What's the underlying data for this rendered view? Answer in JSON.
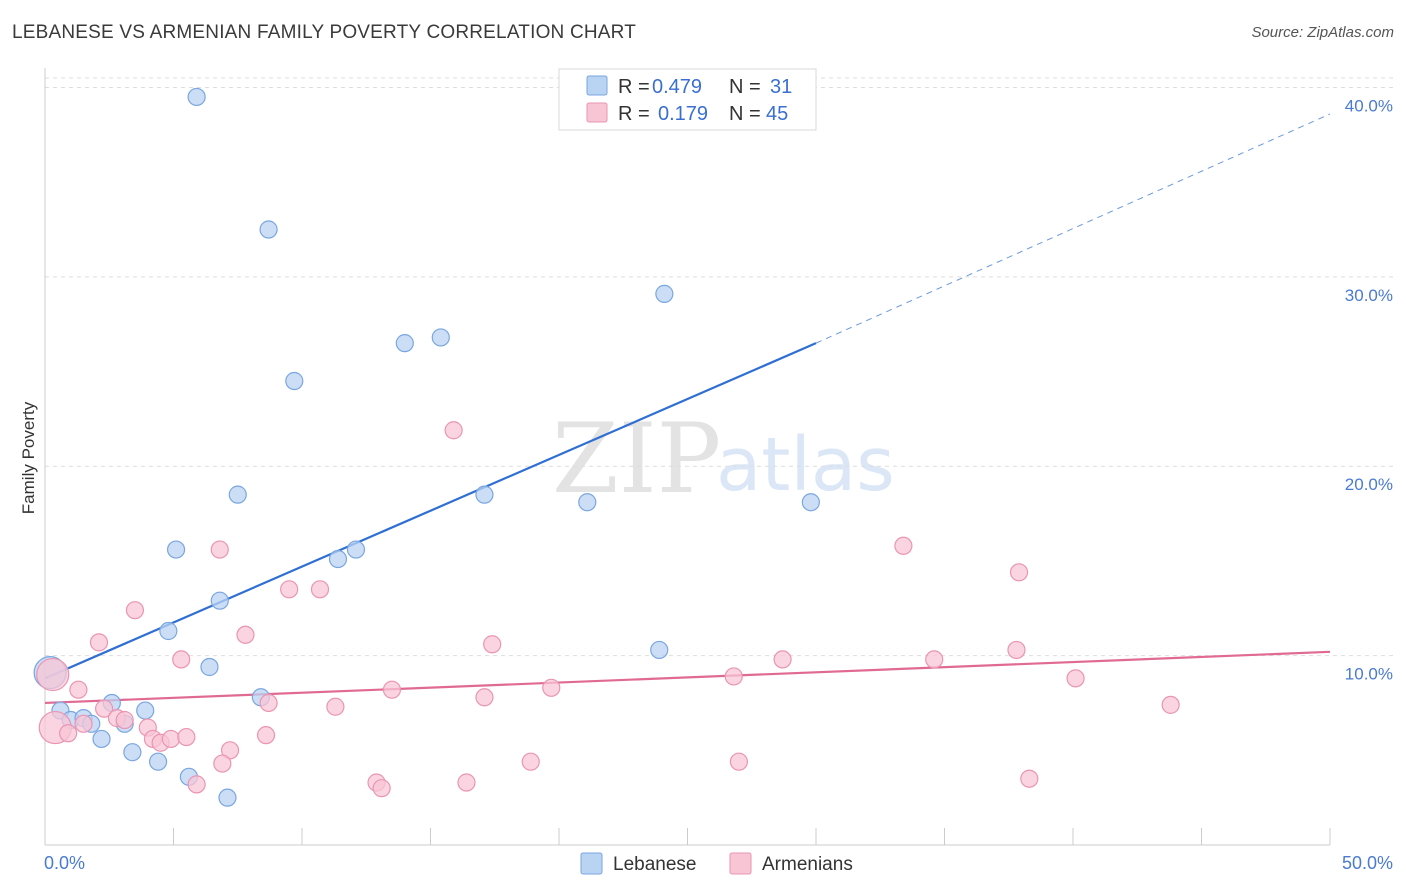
{
  "title": "LEBANESE VS ARMENIAN FAMILY POVERTY CORRELATION CHART",
  "source": "Source: ZipAtlas.com",
  "watermark": {
    "zip": "ZIP",
    "atlas": "atlas"
  },
  "colors": {
    "blue_fill": "#b9d3f3",
    "blue_stroke": "#7aa6e0",
    "blue_line": "#2f6fd3",
    "pink_fill": "#f8c5d5",
    "pink_stroke": "#ea95b2",
    "pink_line": "#e06a92",
    "grid": "#dddddd",
    "tick_text": "#4a7bd0"
  },
  "legend": {
    "rows": [
      {
        "r_label": "R =",
        "r_value": "0.479",
        "n_label": "N =",
        "n_value": "31"
      },
      {
        "r_label": "R =",
        "r_value": "0.179",
        "n_label": "N =",
        "n_value": "45"
      }
    ]
  },
  "chart_data": {
    "type": "scatter",
    "title": "LEBANESE VS ARMENIAN FAMILY POVERTY CORRELATION CHART",
    "xlabel": "",
    "ylabel": "Family Poverty",
    "xlim": [
      0,
      50
    ],
    "ylim": [
      0,
      40.5
    ],
    "x_tick_labels": [
      "0.0%",
      "50.0%"
    ],
    "y_ticks": [
      10,
      20,
      30,
      40
    ],
    "y_tick_labels": [
      "10.0%",
      "20.0%",
      "30.0%",
      "40.0%"
    ],
    "grid": true,
    "legend_position": "top-center",
    "series": [
      {
        "name": "Lebanese",
        "color": "#b9d3f3",
        "trend": {
          "x0": 0,
          "y0": 8.8,
          "x1": 30,
          "y1": 26.5,
          "dashed_to_x": 50,
          "dashed_to_y": 38.6
        },
        "points": [
          [
            5.9,
            39.5
          ],
          [
            8.7,
            32.5
          ],
          [
            9.7,
            24.5
          ],
          [
            14.0,
            26.5
          ],
          [
            15.4,
            26.8
          ],
          [
            24.1,
            29.1
          ],
          [
            7.5,
            18.5
          ],
          [
            17.1,
            18.5
          ],
          [
            21.1,
            18.1
          ],
          [
            29.8,
            18.1
          ],
          [
            5.1,
            15.6
          ],
          [
            11.4,
            15.1
          ],
          [
            12.1,
            15.6
          ],
          [
            6.8,
            12.9
          ],
          [
            4.8,
            11.3
          ],
          [
            23.9,
            10.3
          ],
          [
            6.4,
            9.4
          ],
          [
            0.2,
            9.1
          ],
          [
            8.4,
            7.8
          ],
          [
            2.6,
            7.5
          ],
          [
            0.6,
            7.1
          ],
          [
            3.9,
            7.1
          ],
          [
            1.0,
            6.6
          ],
          [
            1.5,
            6.7
          ],
          [
            1.8,
            6.4
          ],
          [
            3.1,
            6.4
          ],
          [
            2.2,
            5.6
          ],
          [
            3.4,
            4.9
          ],
          [
            4.4,
            4.4
          ],
          [
            5.6,
            3.6
          ],
          [
            7.1,
            2.5
          ]
        ]
      },
      {
        "name": "Armenians",
        "color": "#f8c5d5",
        "trend": {
          "x0": 0,
          "y0": 7.5,
          "x1": 50,
          "y1": 10.2
        },
        "points": [
          [
            15.9,
            21.9
          ],
          [
            6.8,
            15.6
          ],
          [
            33.4,
            15.8
          ],
          [
            37.9,
            14.4
          ],
          [
            9.5,
            13.5
          ],
          [
            10.7,
            13.5
          ],
          [
            3.5,
            12.4
          ],
          [
            7.8,
            11.1
          ],
          [
            2.1,
            10.7
          ],
          [
            17.4,
            10.6
          ],
          [
            5.3,
            9.8
          ],
          [
            28.7,
            9.8
          ],
          [
            34.6,
            9.8
          ],
          [
            37.8,
            10.3
          ],
          [
            26.8,
            8.9
          ],
          [
            40.1,
            8.8
          ],
          [
            1.3,
            8.2
          ],
          [
            13.5,
            8.2
          ],
          [
            19.7,
            8.3
          ],
          [
            17.1,
            7.8
          ],
          [
            8.7,
            7.5
          ],
          [
            11.3,
            7.3
          ],
          [
            43.8,
            7.4
          ],
          [
            0.3,
            9.0
          ],
          [
            0.4,
            6.2
          ],
          [
            0.9,
            5.9
          ],
          [
            2.3,
            7.2
          ],
          [
            2.8,
            6.7
          ],
          [
            3.1,
            6.6
          ],
          [
            4.0,
            6.2
          ],
          [
            4.2,
            5.6
          ],
          [
            4.5,
            5.4
          ],
          [
            4.9,
            5.6
          ],
          [
            5.5,
            5.7
          ],
          [
            8.6,
            5.8
          ],
          [
            7.2,
            5.0
          ],
          [
            6.9,
            4.3
          ],
          [
            18.9,
            4.4
          ],
          [
            27.0,
            4.4
          ],
          [
            5.9,
            3.2
          ],
          [
            12.9,
            3.3
          ],
          [
            13.1,
            3.0
          ],
          [
            16.4,
            3.3
          ],
          [
            38.3,
            3.5
          ],
          [
            1.5,
            6.4
          ]
        ]
      }
    ]
  },
  "bottom_legend": {
    "items": [
      "Lebanese",
      "Armenians"
    ]
  }
}
